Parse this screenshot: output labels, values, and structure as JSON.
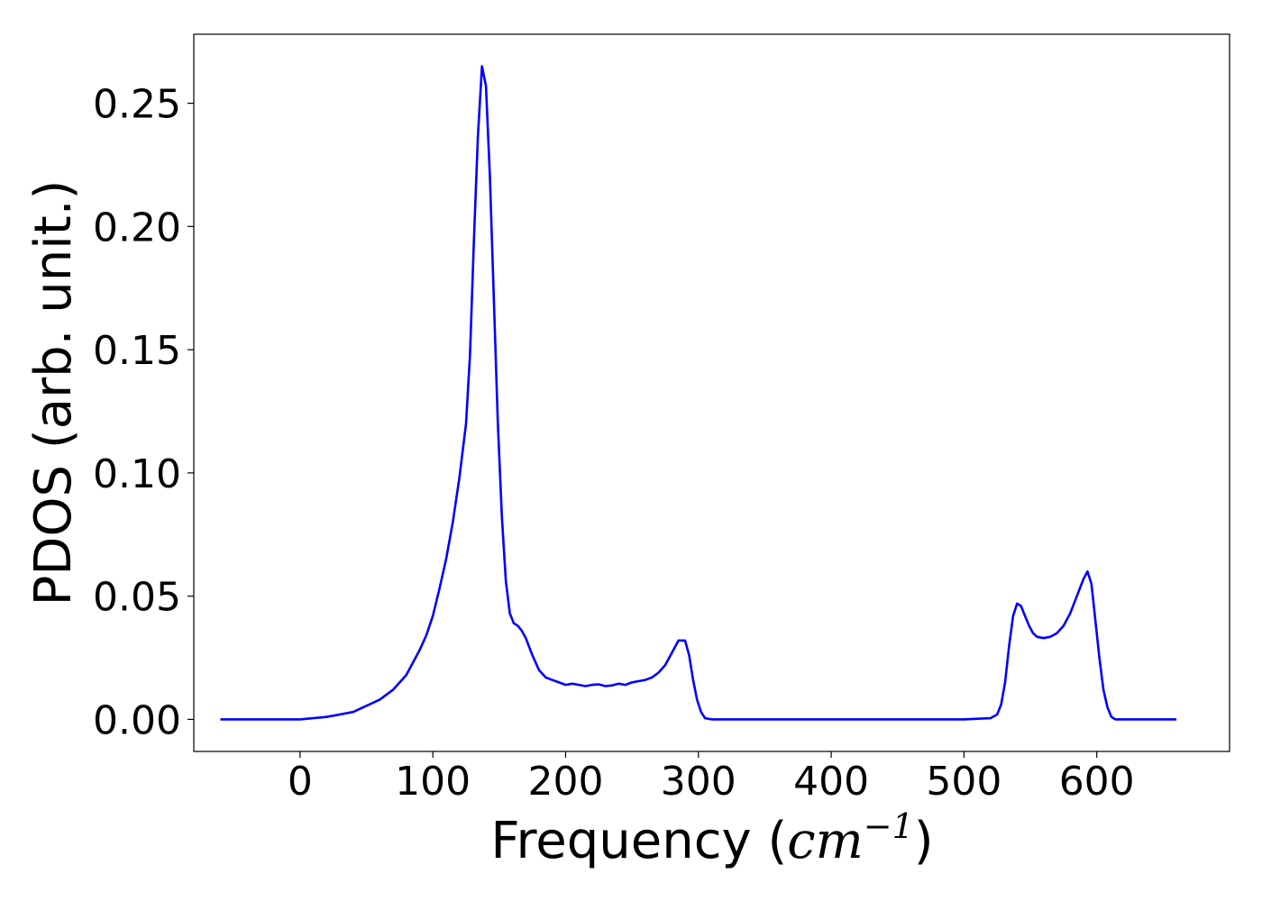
{
  "chart_data": {
    "type": "line",
    "title": "",
    "xlabel": "Frequency (cm⁻¹)",
    "xlabel_parts": {
      "prefix": "Frequency (",
      "base": "cm",
      "sup": "−1",
      "suffix": ")"
    },
    "ylabel": "PDOS (arb. unit.)",
    "xlim": [
      -80,
      700
    ],
    "ylim": [
      -0.013,
      0.278
    ],
    "xticks": [
      0,
      100,
      200,
      300,
      400,
      500,
      600
    ],
    "xtick_labels": [
      "0",
      "100",
      "200",
      "300",
      "400",
      "500",
      "600"
    ],
    "yticks": [
      0.0,
      0.05,
      0.1,
      0.15,
      0.2,
      0.25
    ],
    "ytick_labels": [
      "0.00",
      "0.05",
      "0.10",
      "0.15",
      "0.20",
      "0.25"
    ],
    "grid": false,
    "legend": "none",
    "series_color": "#0000ff",
    "x": [
      -60,
      0,
      20,
      40,
      60,
      70,
      80,
      90,
      95,
      100,
      105,
      110,
      115,
      120,
      125,
      128,
      131,
      134,
      137,
      140,
      143,
      146,
      149,
      152,
      155,
      158,
      161,
      164,
      167,
      170,
      175,
      180,
      185,
      190,
      195,
      200,
      205,
      210,
      215,
      220,
      225,
      230,
      235,
      240,
      245,
      250,
      255,
      260,
      265,
      270,
      275,
      280,
      285,
      290,
      293,
      296,
      299,
      302,
      305,
      310,
      320,
      400,
      500,
      520,
      525,
      528,
      531,
      534,
      537,
      540,
      543,
      546,
      549,
      552,
      555,
      560,
      565,
      570,
      575,
      580,
      585,
      590,
      593,
      596,
      599,
      602,
      605,
      608,
      611,
      614,
      617,
      620,
      630,
      660
    ],
    "y": [
      0.0,
      0.0,
      0.001,
      0.003,
      0.008,
      0.012,
      0.018,
      0.028,
      0.034,
      0.042,
      0.053,
      0.065,
      0.08,
      0.098,
      0.12,
      0.148,
      0.195,
      0.237,
      0.265,
      0.257,
      0.22,
      0.17,
      0.12,
      0.082,
      0.056,
      0.043,
      0.039,
      0.038,
      0.036,
      0.033,
      0.026,
      0.02,
      0.017,
      0.016,
      0.015,
      0.014,
      0.0145,
      0.014,
      0.0135,
      0.014,
      0.0142,
      0.0135,
      0.0138,
      0.0145,
      0.014,
      0.015,
      0.0155,
      0.016,
      0.017,
      0.019,
      0.022,
      0.027,
      0.032,
      0.032,
      0.026,
      0.016,
      0.008,
      0.003,
      0.0005,
      0.0,
      0.0,
      0.0,
      0.0,
      0.0005,
      0.002,
      0.006,
      0.015,
      0.03,
      0.042,
      0.047,
      0.046,
      0.042,
      0.038,
      0.035,
      0.0335,
      0.033,
      0.0335,
      0.035,
      0.038,
      0.043,
      0.05,
      0.057,
      0.06,
      0.055,
      0.04,
      0.025,
      0.012,
      0.005,
      0.001,
      0.0,
      0.0,
      0.0,
      0.0,
      0.0
    ]
  }
}
